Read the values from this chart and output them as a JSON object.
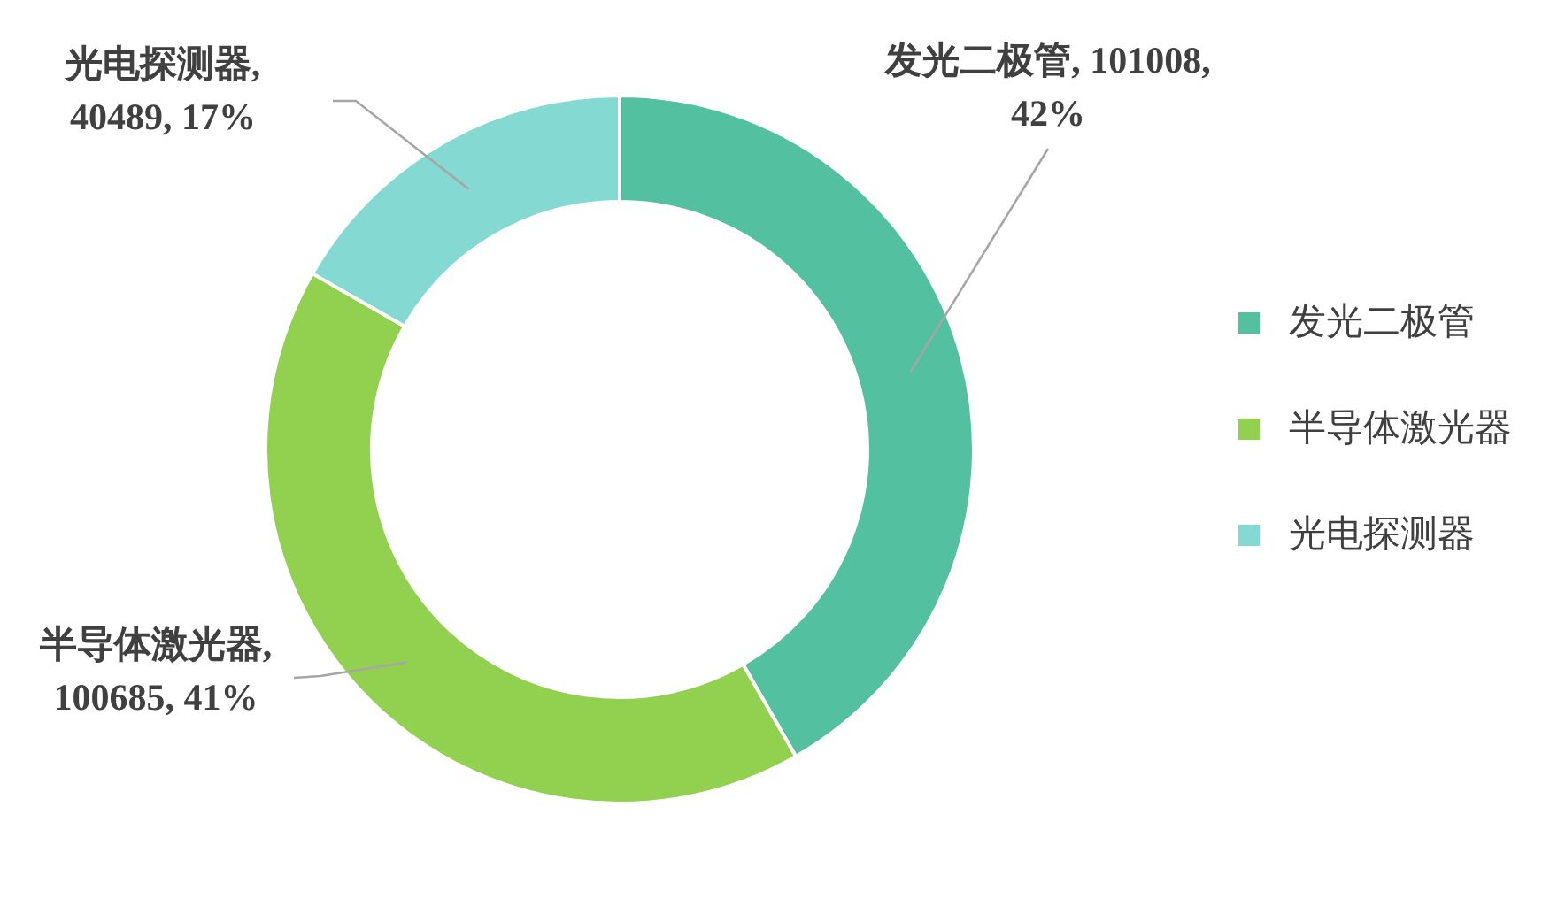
{
  "chart_data": {
    "type": "donut",
    "categories": [
      "发光二极管",
      "半导体激光器",
      "光电探测器"
    ],
    "values": [
      101008,
      100685,
      40489
    ],
    "colors": [
      "#53c1a0",
      "#92d050",
      "#84d9d3"
    ],
    "value_labels": [
      "发光二极管, 101008,\n42%",
      "半导体激光器,\n100685, 41%",
      "光电探测器,\n40489, 17%"
    ],
    "legend": "right"
  }
}
